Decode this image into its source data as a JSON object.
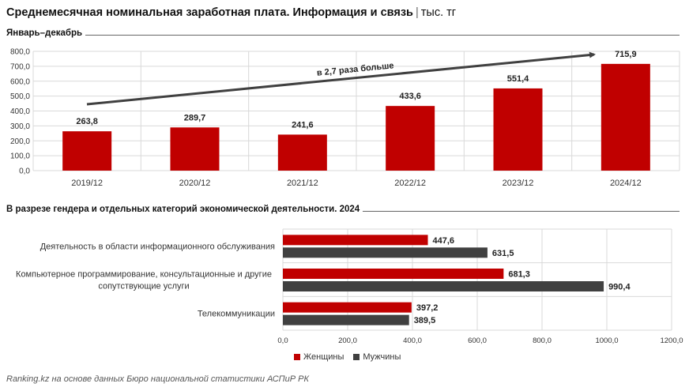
{
  "header": {
    "title_main": "Среднемесячная номинальная заработная плата. Информация и связь",
    "title_sep": "|",
    "title_unit": "тыс. тг"
  },
  "colors": {
    "women": "#c00000",
    "men": "#404040",
    "trend": "#404040",
    "grid": "#d9d9d9"
  },
  "chart_data": [
    {
      "type": "bar",
      "section_title": "Январь–декабрь",
      "categories": [
        "2019/12",
        "2020/12",
        "2021/12",
        "2022/12",
        "2023/12",
        "2024/12"
      ],
      "values": [
        263.8,
        289.7,
        241.6,
        433.6,
        551.4,
        715.9
      ],
      "value_labels": [
        "263,8",
        "289,7",
        "241,6",
        "433,6",
        "551,4",
        "715,9"
      ],
      "ylim": [
        0,
        800
      ],
      "y_ticks": [
        "0,0",
        "100,0",
        "200,0",
        "300,0",
        "400,0",
        "500,0",
        "600,0",
        "700,0",
        "800,0"
      ],
      "annotation": "в 2,7 раза больше"
    },
    {
      "type": "bar",
      "orientation": "horizontal",
      "section_title": "В разрезе гендера и отдельных категорий экономической деятельности. 2024",
      "categories": [
        [
          "Деятельность в области информационного обслуживания"
        ],
        [
          "Компьютерное программирование, консультационные и другие",
          "сопутствующие услуги"
        ],
        [
          "Телекоммуникации"
        ]
      ],
      "series": [
        {
          "name": "Женщины",
          "values": [
            447.6,
            681.3,
            397.2
          ],
          "labels": [
            "447,6",
            "681,3",
            "397,2"
          ]
        },
        {
          "name": "Мужчины",
          "values": [
            631.5,
            990.4,
            389.5
          ],
          "labels": [
            "631,5",
            "990,4",
            "389,5"
          ]
        }
      ],
      "xlim": [
        0,
        1200
      ],
      "x_ticks": [
        "0,0",
        "200,0",
        "400,0",
        "600,0",
        "800,0",
        "1000,0",
        "1200,0"
      ]
    }
  ],
  "footer": {
    "source": "Ranking.kz на основе данных Бюро национальной статистики АСПиР РК"
  }
}
